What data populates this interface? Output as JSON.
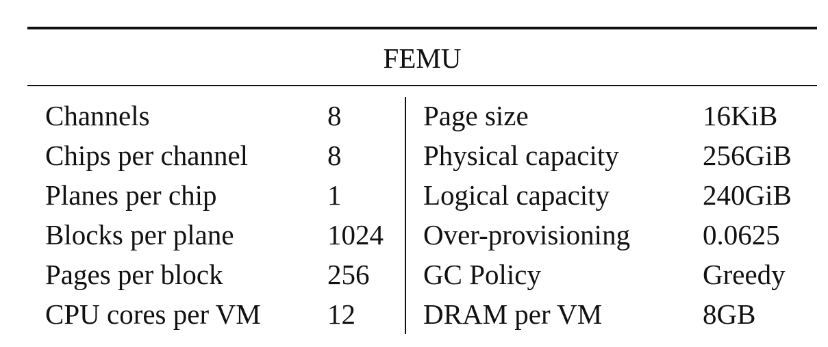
{
  "table": {
    "caption": "FEMU",
    "rows": [
      {
        "left_label": "Channels",
        "left_value": "8",
        "right_label": "Page size",
        "right_value": "16KiB"
      },
      {
        "left_label": "Chips per channel",
        "left_value": "8",
        "right_label": "Physical capacity",
        "right_value": "256GiB"
      },
      {
        "left_label": "Planes per chip",
        "left_value": "1",
        "right_label": "Logical capacity",
        "right_value": "240GiB"
      },
      {
        "left_label": "Blocks per plane",
        "left_value": "1024",
        "right_label": "Over-provisioning",
        "right_value": "0.0625"
      },
      {
        "left_label": "Pages per block",
        "left_value": "256",
        "right_label": "GC Policy",
        "right_value": "Greedy"
      },
      {
        "left_label": "CPU cores per VM",
        "left_value": "12",
        "right_label": "DRAM per VM",
        "right_value": "8GB"
      }
    ]
  }
}
